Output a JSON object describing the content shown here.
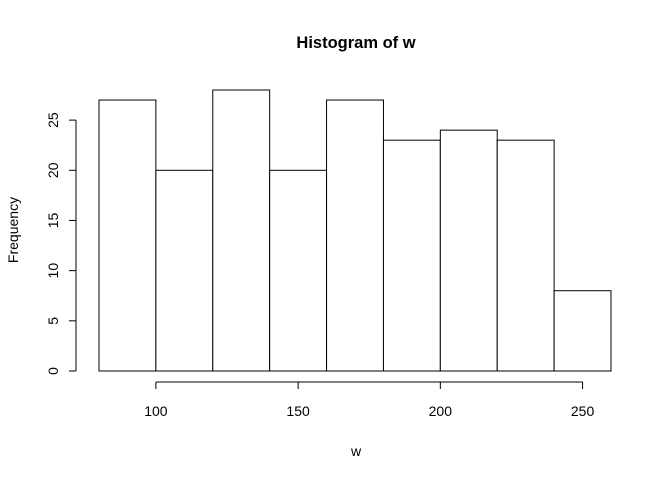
{
  "chart_data": {
    "type": "bar",
    "subtype": "histogram",
    "title": "Histogram of w",
    "xlabel": "w",
    "ylabel": "Frequency",
    "bins": [
      {
        "start": 80,
        "end": 100,
        "count": 27
      },
      {
        "start": 100,
        "end": 120,
        "count": 20
      },
      {
        "start": 120,
        "end": 140,
        "count": 28
      },
      {
        "start": 140,
        "end": 160,
        "count": 20
      },
      {
        "start": 160,
        "end": 180,
        "count": 27
      },
      {
        "start": 180,
        "end": 200,
        "count": 23
      },
      {
        "start": 200,
        "end": 220,
        "count": 24
      },
      {
        "start": 220,
        "end": 240,
        "count": 23
      },
      {
        "start": 240,
        "end": 260,
        "count": 8
      }
    ],
    "xticks": [
      100,
      150,
      200,
      250
    ],
    "yticks": [
      0,
      5,
      10,
      15,
      20,
      25
    ],
    "xlim": [
      80,
      260
    ],
    "ylim": [
      0,
      28
    ],
    "grid": false,
    "bar_fill": "#ffffff",
    "bar_stroke": "#000000"
  }
}
